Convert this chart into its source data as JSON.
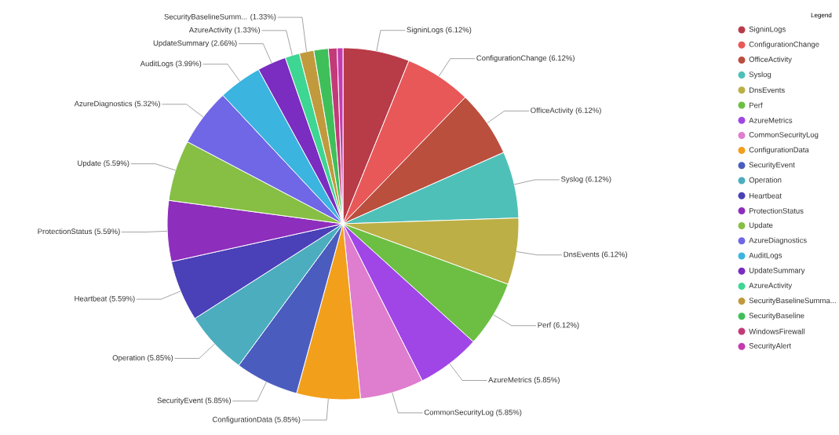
{
  "chart_data": {
    "type": "pie",
    "categories": [
      "SigninLogs",
      "ConfigurationChange",
      "OfficeActivity",
      "Syslog",
      "DnsEvents",
      "Perf",
      "AzureMetrics",
      "CommonSecurityLog",
      "ConfigurationData",
      "SecurityEvent",
      "Operation",
      "Heartbeat",
      "ProtectionStatus",
      "Update",
      "AzureDiagnostics",
      "AuditLogs",
      "UpdateSummary",
      "AzureActivity",
      "SecurityBaselineSumma...",
      "SecurityBaseline",
      "WindowsFirewall",
      "SecurityAlert"
    ],
    "values": [
      6.12,
      6.12,
      6.12,
      6.12,
      6.12,
      6.12,
      5.85,
      5.85,
      5.85,
      5.85,
      5.85,
      5.59,
      5.59,
      5.59,
      5.32,
      3.99,
      2.66,
      1.33,
      1.33,
      1.33,
      0.8,
      0.53
    ],
    "colors": [
      "#b83b48",
      "#e85858",
      "#bb4f3e",
      "#4fc0b8",
      "#bcaf45",
      "#6cbf43",
      "#a046e6",
      "#df7dce",
      "#f29f1b",
      "#4a5dbe",
      "#4badbe",
      "#4a40b8",
      "#8e2ebc",
      "#86bf44",
      "#7067e6",
      "#3bb4e0",
      "#7a2dc0",
      "#3dd692",
      "#c19a3e",
      "#3fbf5a",
      "#c23b78",
      "#c43bb0"
    ],
    "value_labels": [
      "SigninLogs (6.12%)",
      "ConfigurationChange (6.12%)",
      "OfficeActivity (6.12%)",
      "Syslog (6.12%)",
      "DnsEvents (6.12%)",
      "Perf (6.12%)",
      "AzureMetrics (5.85%)",
      "CommonSecurityLog (5.85%)",
      "ConfigurationData (5.85%)",
      "SecurityEvent (5.85%)",
      "Operation (5.85%)",
      "Heartbeat (5.59%)",
      "ProtectionStatus (5.59%)",
      "Update (5.59%)",
      "AzureDiagnostics (5.32%)",
      "AuditLogs (3.99%)",
      "UpdateSummary (2.66%)",
      "AzureActivity (1.33%)",
      "SecurityBaselineSumm... (1.33%)",
      null,
      null,
      null
    ],
    "legend_title": "Legend",
    "legend": "top right"
  }
}
